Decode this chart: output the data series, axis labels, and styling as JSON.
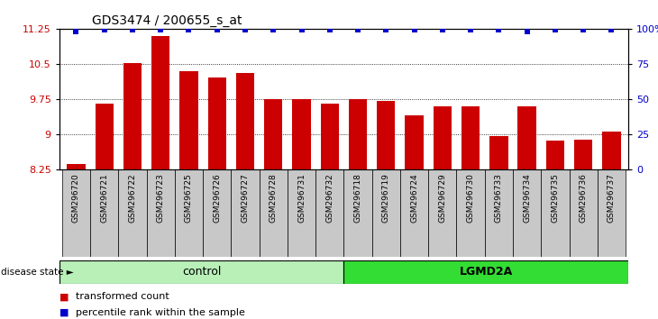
{
  "title": "GDS3474 / 200655_s_at",
  "samples": [
    "GSM296720",
    "GSM296721",
    "GSM296722",
    "GSM296723",
    "GSM296725",
    "GSM296726",
    "GSM296727",
    "GSM296728",
    "GSM296731",
    "GSM296732",
    "GSM296718",
    "GSM296719",
    "GSM296724",
    "GSM296729",
    "GSM296730",
    "GSM296733",
    "GSM296734",
    "GSM296735",
    "GSM296736",
    "GSM296737"
  ],
  "bar_values": [
    8.35,
    9.65,
    10.52,
    11.1,
    10.35,
    10.2,
    10.3,
    9.75,
    9.75,
    9.65,
    9.75,
    9.7,
    9.4,
    9.6,
    9.6,
    8.95,
    9.6,
    8.85,
    8.88,
    9.05
  ],
  "percentile_values": [
    98,
    99,
    99,
    99,
    99,
    99,
    99,
    99,
    99,
    99,
    99,
    99,
    99,
    99,
    99,
    99,
    98,
    99,
    99,
    99
  ],
  "control_count": 10,
  "lgmd2a_count": 10,
  "ylim_left": [
    8.25,
    11.25
  ],
  "ylim_right": [
    0,
    100
  ],
  "yticks_left": [
    8.25,
    9.0,
    9.75,
    10.5,
    11.25
  ],
  "ytick_labels_left": [
    "8.25",
    "9",
    "9.75",
    "10.5",
    "11.25"
  ],
  "yticks_right": [
    0,
    25,
    50,
    75,
    100
  ],
  "ytick_labels_right": [
    "0",
    "25",
    "50",
    "75",
    "100%"
  ],
  "bar_color": "#cc0000",
  "dot_color": "#0000cc",
  "control_color": "#b8f0b8",
  "lgmd2a_color": "#33dd33",
  "label_bg_color": "#c8c8c8",
  "grid_color": "#000000",
  "legend_red_label": "transformed count",
  "legend_blue_label": "percentile rank within the sample",
  "disease_state_label": "disease state",
  "control_label": "control",
  "lgmd2a_label": "LGMD2A"
}
